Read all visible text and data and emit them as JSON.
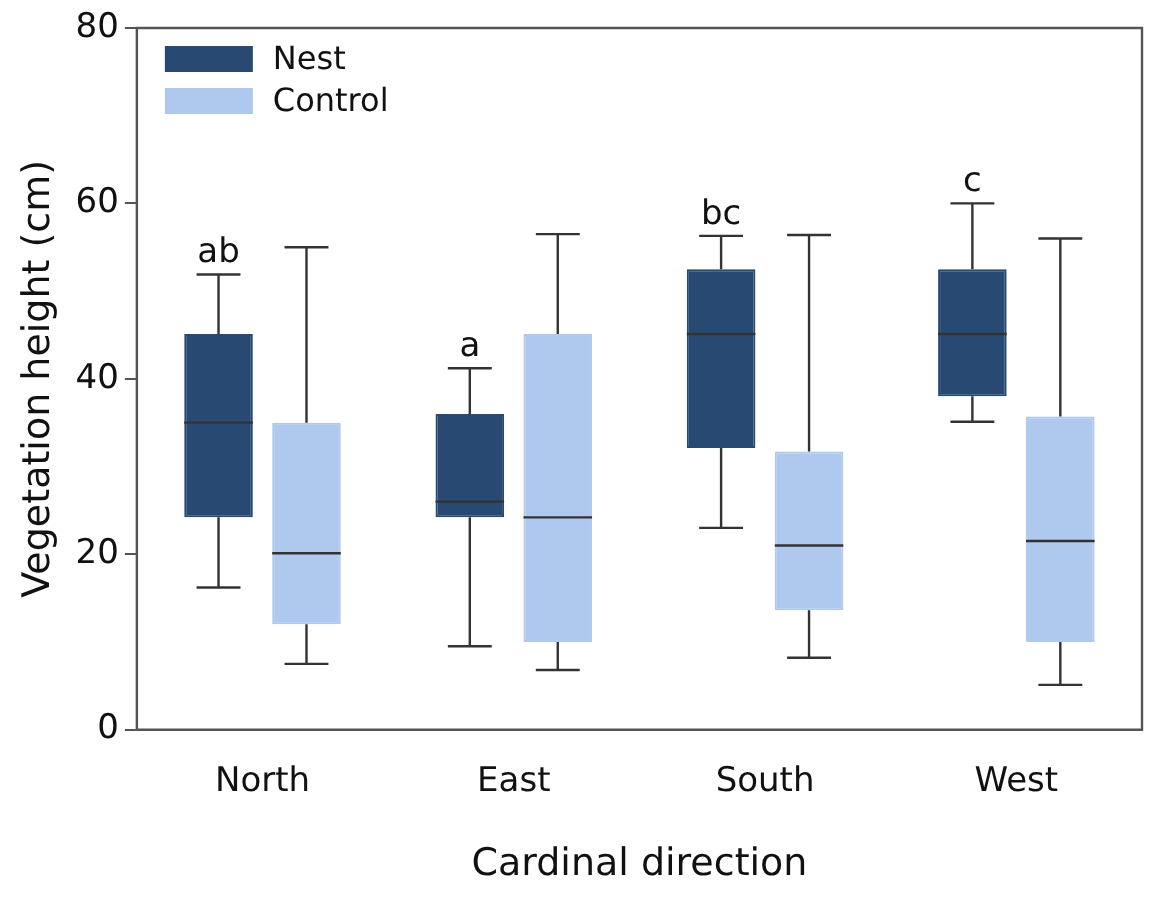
{
  "chart_data": {
    "type": "box",
    "xlabel": "Cardinal direction",
    "ylabel": "Vegetation height (cm)",
    "categories": [
      "North",
      "East",
      "South",
      "West"
    ],
    "series": [
      {
        "name": "Nest",
        "color": "#284a72",
        "boxes": [
          {
            "low": 16.2,
            "q1": 24.2,
            "median": 35,
            "q3": 45.1,
            "high": 51.9
          },
          {
            "low": 9.5,
            "q1": 24.2,
            "median": 26,
            "q3": 36,
            "high": 41.2
          },
          {
            "low": 23,
            "q1": 32.1,
            "median": 45.1,
            "q3": 52.5,
            "high": 56.3
          },
          {
            "low": 35.1,
            "q1": 38,
            "median": 45.1,
            "q3": 52.5,
            "high": 60
          }
        ]
      },
      {
        "name": "Control",
        "color": "#aec8ee",
        "boxes": [
          {
            "low": 7.5,
            "q1": 12,
            "median": 20.1,
            "q3": 35,
            "high": 55
          },
          {
            "low": 6.8,
            "q1": 10,
            "median": 24.2,
            "q3": 45.1,
            "high": 56.5
          },
          {
            "low": 8.2,
            "q1": 13.6,
            "median": 21,
            "q3": 31.7,
            "high": 56.4
          },
          {
            "low": 5.1,
            "q1": 10,
            "median": 21.5,
            "q3": 35.7,
            "high": 56
          }
        ]
      }
    ],
    "ylim": [
      0,
      80
    ],
    "yticks": [
      0,
      20,
      40,
      60,
      80
    ],
    "grid": false,
    "legend": "top left",
    "annotations": [
      "ab",
      "a",
      "bc",
      "c"
    ]
  }
}
